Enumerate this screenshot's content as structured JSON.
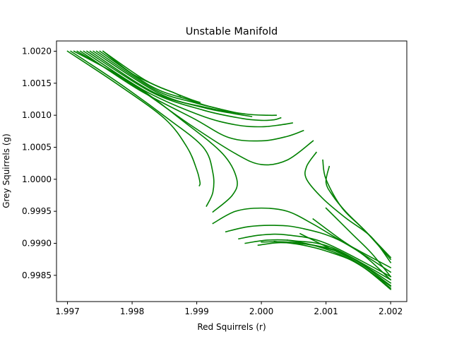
{
  "chart_data": {
    "type": "line",
    "title": "Unstable Manifold",
    "xlabel": "Red Squirrels (r)",
    "ylabel": "Grey Squirrels (g)",
    "xlim": [
      1.99683,
      2.00225
    ],
    "ylim": [
      0.99809,
      1.00216
    ],
    "x_ticks": [
      1.997,
      1.998,
      1.999,
      2.0,
      2.001,
      2.002
    ],
    "x_tick_labels": [
      "1.997",
      "1.998",
      "1.999",
      "2.000",
      "2.001",
      "2.002"
    ],
    "y_ticks": [
      0.9985,
      0.999,
      0.9995,
      1.0,
      1.0005,
      1.001,
      1.0015,
      1.002
    ],
    "y_tick_labels": [
      "0.9985",
      "0.9990",
      "0.9995",
      "1.0000",
      "1.0005",
      "1.0010",
      "1.0015",
      "1.0020"
    ],
    "grid": false,
    "line_color": "#008000",
    "series": [
      {
        "x": [
          1.997,
          1.99775,
          1.9985,
          1.99885,
          1.999,
          1.99905,
          1.99904
        ],
        "y": [
          1.002,
          1.0015,
          1.00095,
          1.0005,
          1.00015,
          0.99995,
          0.9999
        ]
      },
      {
        "x": [
          1.99705,
          1.9978,
          1.99855,
          1.9991,
          1.99925,
          1.99925,
          1.99915
        ],
        "y": [
          1.002,
          1.0015,
          1.00095,
          1.0005,
          1.0001,
          0.9998,
          0.99958
        ]
      },
      {
        "x": [
          1.9971,
          1.998,
          1.9988,
          1.9994,
          1.99962,
          1.99955,
          1.99925
        ],
        "y": [
          1.002,
          1.0015,
          1.0009,
          1.0004,
          1.0,
          0.99975,
          0.99949
        ]
      },
      {
        "x": [
          1.99715,
          1.99805,
          1.9989,
          1.9996,
          2.0,
          2.0004,
          2.0008
        ],
        "y": [
          1.002,
          1.00145,
          1.00085,
          1.0004,
          1.00023,
          1.0003,
          1.0006
        ]
      },
      {
        "x": [
          1.9972,
          1.9981,
          1.99895,
          1.9995,
          2.0,
          2.0004,
          2.00065
        ],
        "y": [
          1.002,
          1.0014,
          1.00095,
          1.00065,
          1.0006,
          1.00067,
          1.00076
        ]
      },
      {
        "x": [
          1.99725,
          1.9982,
          1.99905,
          1.9996,
          2.0,
          2.0003,
          2.00048
        ],
        "y": [
          1.002,
          1.00138,
          1.001,
          1.00085,
          1.00082,
          1.00085,
          1.00088
        ]
      },
      {
        "x": [
          1.9973,
          1.9983,
          1.9991,
          1.9997,
          2.0,
          2.0002,
          2.0003
        ],
        "y": [
          1.002,
          1.00136,
          1.00108,
          1.00095,
          1.00092,
          1.00093,
          1.00096
        ]
      },
      {
        "x": [
          1.99735,
          1.99835,
          1.99915,
          1.99975,
          2.0001,
          2.00023
        ],
        "y": [
          1.002,
          1.00135,
          1.00112,
          1.00102,
          1.001,
          1.001
        ]
      },
      {
        "x": [
          1.9974,
          1.9984,
          1.9991,
          1.99955,
          1.99985
        ],
        "y": [
          1.002,
          1.00135,
          1.00112,
          1.00103,
          1.00098
        ]
      },
      {
        "x": [
          1.99745,
          1.99835,
          1.99895,
          1.99935,
          1.99965
        ],
        "y": [
          1.002,
          1.0014,
          1.0012,
          1.0011,
          1.00103
        ]
      },
      {
        "x": [
          1.9975,
          1.9983,
          1.99885,
          1.99915,
          1.99935
        ],
        "y": [
          1.002,
          1.00145,
          1.00125,
          1.00115,
          1.0011
        ]
      },
      {
        "x": [
          1.99755,
          1.9982,
          1.99865,
          1.9989,
          1.99905
        ],
        "y": [
          1.002,
          1.00155,
          1.00135,
          1.00125,
          1.0012
        ]
      },
      {
        "x": [
          1.99755,
          1.998,
          1.9984,
          1.99865,
          1.99875
        ],
        "y": [
          1.002,
          1.00165,
          1.00145,
          1.00135,
          1.0013
        ]
      },
      {
        "x": [
          2.00095,
          2.001,
          2.00125,
          2.0016,
          2.002
        ],
        "y": [
          1.0003,
          1.0,
          0.99955,
          0.9992,
          0.99875
        ]
      },
      {
        "x": [
          2.00105,
          2.001,
          2.0011,
          2.0013,
          2.0016,
          2.002
        ],
        "y": [
          1.0002,
          0.99995,
          0.99975,
          0.9995,
          0.9992,
          0.99878
        ]
      },
      {
        "x": [
          2.00085,
          2.0007,
          2.0007,
          2.00095,
          2.0013,
          2.0017,
          2.002
        ],
        "y": [
          1.00042,
          1.0002,
          1.0,
          0.9997,
          0.9994,
          0.9991,
          0.9987
        ]
      },
      {
        "x": [
          1.99925,
          1.9996,
          2.0,
          2.0004,
          2.0008,
          2.0013,
          2.002
        ],
        "y": [
          0.99931,
          0.9995,
          0.99955,
          0.9995,
          0.9993,
          0.999,
          0.99862
        ]
      },
      {
        "x": [
          1.99945,
          1.9998,
          2.0002,
          2.0006,
          2.0012,
          2.002
        ],
        "y": [
          0.99918,
          0.99926,
          0.99928,
          0.99924,
          0.99905,
          0.99855
        ]
      },
      {
        "x": [
          1.99965,
          2.0,
          2.0004,
          2.001,
          2.002
        ],
        "y": [
          0.99907,
          0.99913,
          0.99913,
          0.999,
          0.99848
        ]
      },
      {
        "x": [
          1.99975,
          2.0001,
          2.0005,
          2.0011,
          2.002
        ],
        "y": [
          0.999,
          0.99905,
          0.99904,
          0.99893,
          0.99843
        ]
      },
      {
        "x": [
          1.99995,
          2.0003,
          2.0008,
          2.0013,
          2.002
        ],
        "y": [
          0.99897,
          0.99901,
          0.99897,
          0.99883,
          0.99838
        ]
      },
      {
        "x": [
          2.0,
          2.0004,
          2.0009,
          2.0014,
          2.002
        ],
        "y": [
          0.99902,
          0.99902,
          0.99895,
          0.99877,
          0.99834
        ]
      },
      {
        "x": [
          2.0002,
          2.0006,
          2.001,
          2.0015,
          2.002
        ],
        "y": [
          0.99903,
          0.99898,
          0.99888,
          0.99868,
          0.9983
        ]
      },
      {
        "x": [
          2.0004,
          2.0008,
          2.0012,
          2.0016,
          2.002
        ],
        "y": [
          0.99905,
          0.99897,
          0.99883,
          0.99861,
          0.99828
        ]
      },
      {
        "x": [
          2.0006,
          2.001,
          2.0014,
          2.0017,
          2.002
        ],
        "y": [
          0.99915,
          0.99895,
          0.99875,
          0.99854,
          0.99833
        ]
      },
      {
        "x": [
          2.0008,
          2.0012,
          2.0016,
          2.002
        ],
        "y": [
          0.99938,
          0.99908,
          0.9988,
          0.99843
        ]
      },
      {
        "x": [
          2.001,
          2.0014,
          2.0017,
          2.002
        ],
        "y": [
          0.99955,
          0.99915,
          0.99885,
          0.99848
        ]
      }
    ]
  }
}
